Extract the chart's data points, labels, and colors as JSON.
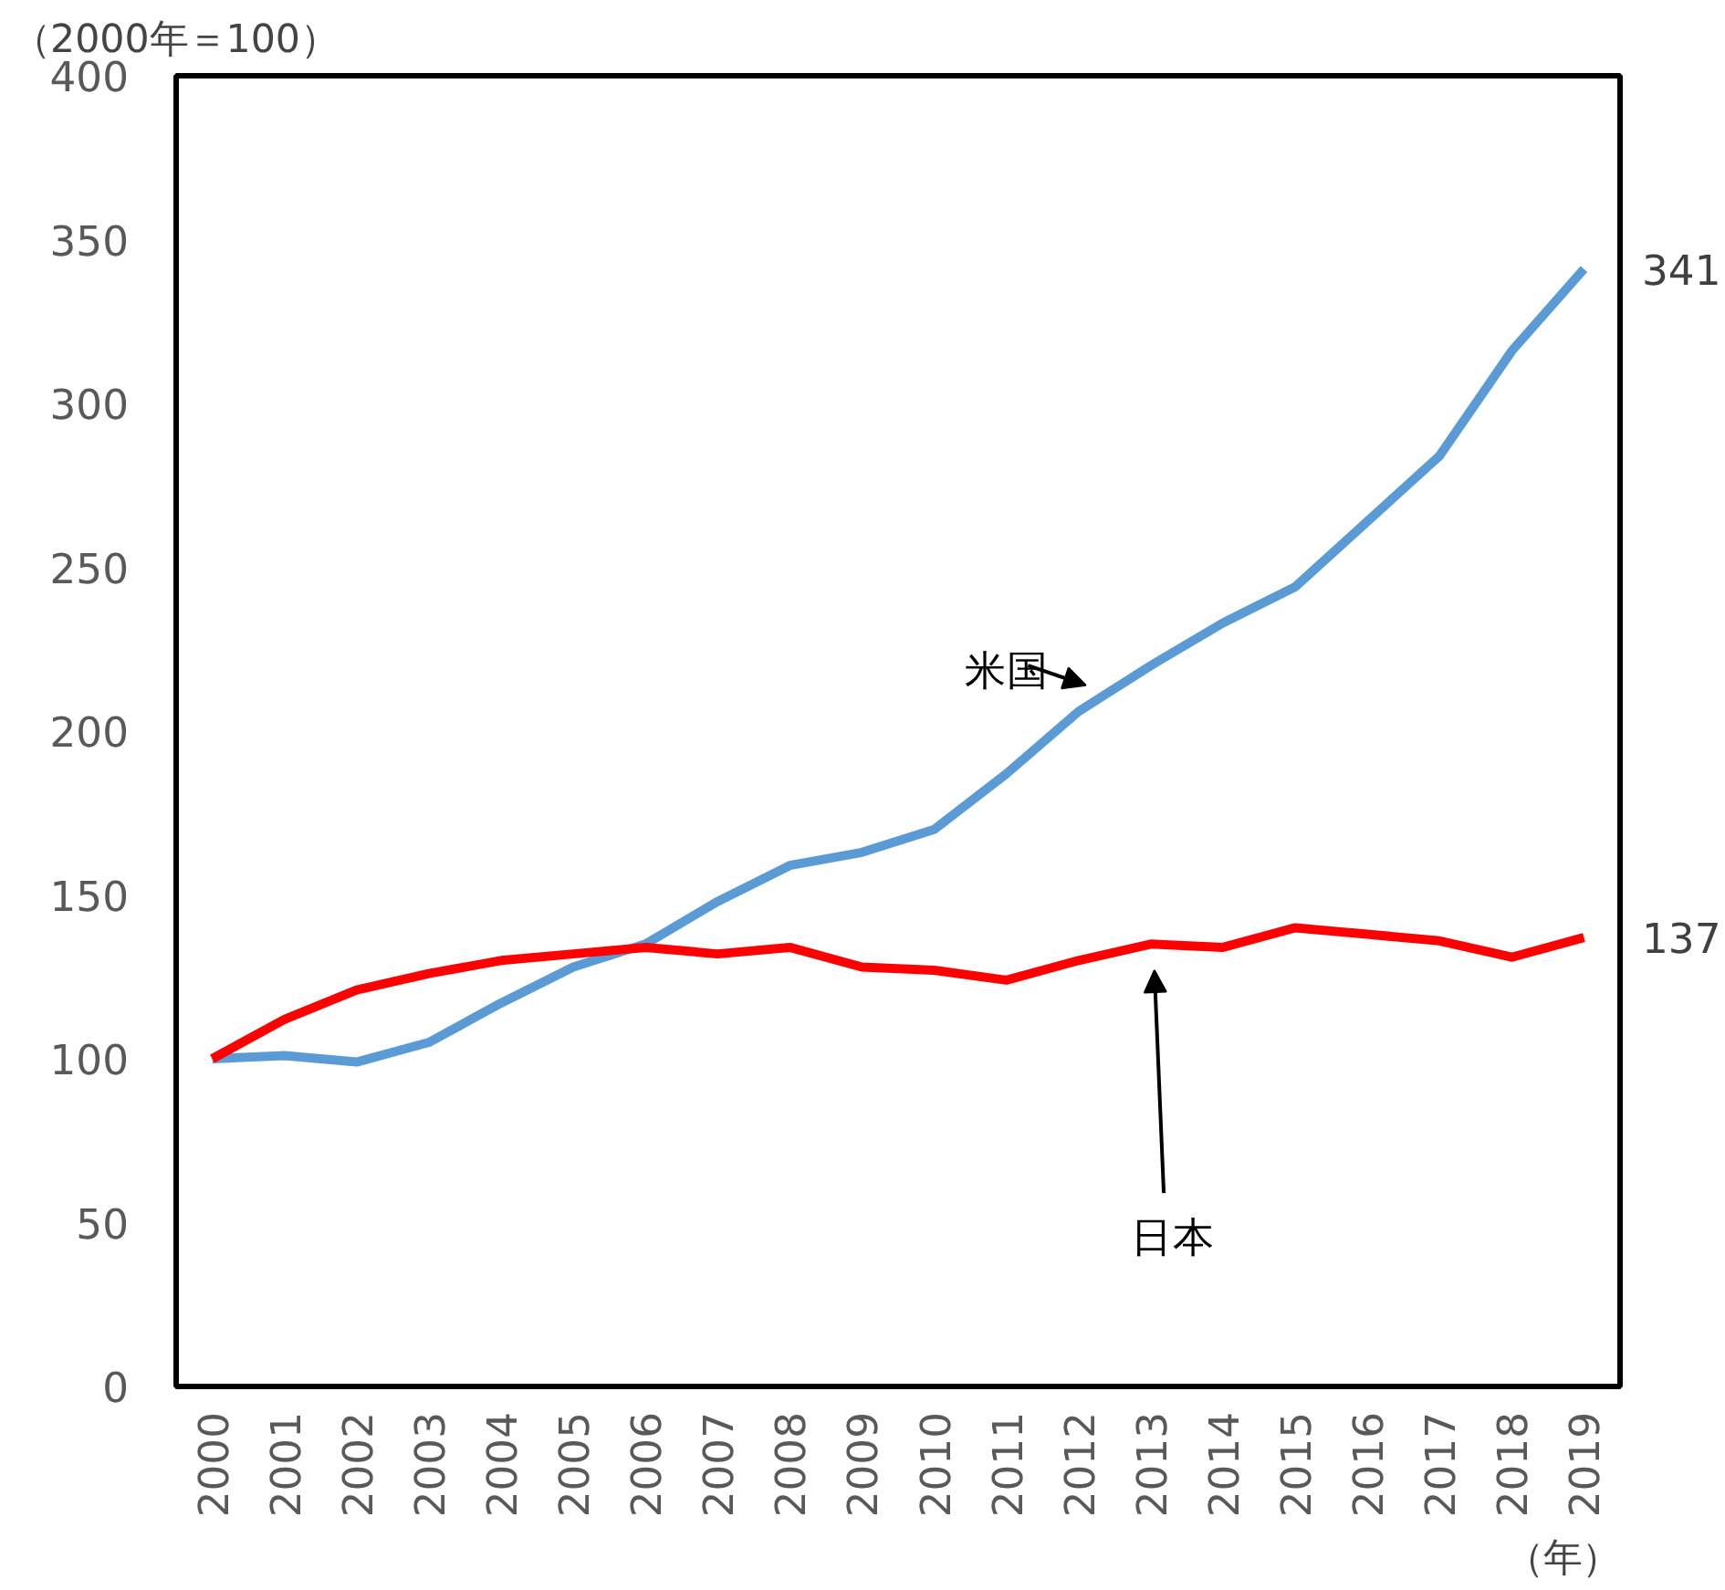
{
  "chart_data": {
    "type": "line",
    "ylabel": "（2000年＝100）",
    "xlabel": "（年）",
    "categories": [
      "2000",
      "2001",
      "2002",
      "2003",
      "2004",
      "2005",
      "2006",
      "2007",
      "2008",
      "2009",
      "2010",
      "2011",
      "2012",
      "2013",
      "2014",
      "2015",
      "2016",
      "2017",
      "2018",
      "2019"
    ],
    "series": [
      {
        "name": "米国",
        "color": "#5b9bd5",
        "values": [
          100,
          101,
          99,
          105,
          117,
          128,
          135,
          148,
          159,
          163,
          170,
          187,
          206,
          220,
          233,
          244,
          264,
          284,
          316,
          341
        ],
        "value_labels": [
          null,
          null,
          null,
          null,
          null,
          null,
          null,
          null,
          null,
          null,
          null,
          null,
          null,
          null,
          null,
          null,
          null,
          null,
          null,
          "341"
        ]
      },
      {
        "name": "日本",
        "color": "#ff0000",
        "values": [
          100,
          112,
          121,
          126,
          130,
          132,
          134,
          132,
          134,
          128,
          127,
          124,
          130,
          135,
          134,
          140,
          138,
          136,
          131,
          137
        ],
        "value_labels": [
          null,
          null,
          null,
          null,
          null,
          null,
          null,
          null,
          null,
          null,
          null,
          null,
          null,
          null,
          null,
          null,
          null,
          null,
          null,
          "137"
        ]
      }
    ],
    "ylim": [
      0,
      400
    ],
    "yticks": [
      0,
      50,
      100,
      150,
      200,
      250,
      300,
      350,
      400
    ],
    "grid": false,
    "legend": false,
    "marker": "none",
    "line_style": "solid"
  }
}
